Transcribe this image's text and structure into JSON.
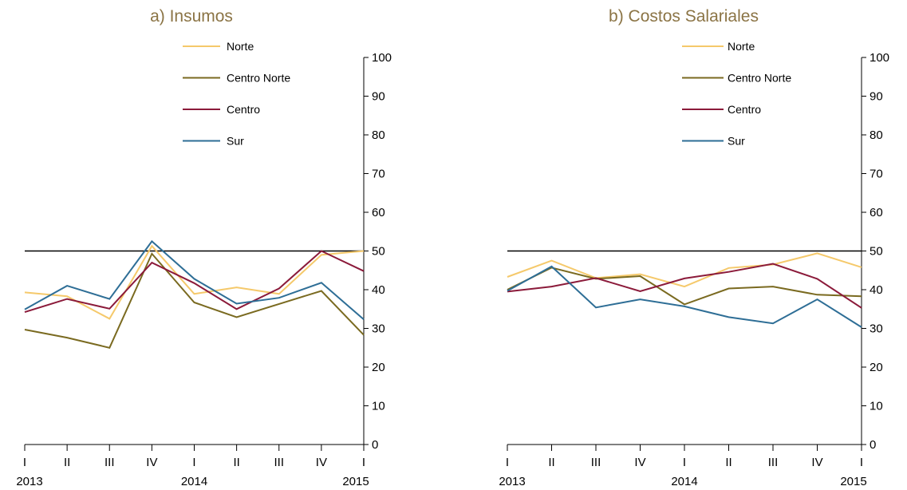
{
  "chart_data": [
    {
      "type": "line",
      "title": "a) Insumos",
      "x_labels": [
        "I",
        "II",
        "III",
        "IV",
        "I",
        "II",
        "III",
        "IV",
        "I"
      ],
      "year_labels": [
        "2013",
        "2014",
        "2015"
      ],
      "ylim": [
        0,
        100
      ],
      "yticks": [
        0,
        10,
        20,
        30,
        40,
        50,
        60,
        70,
        80,
        90,
        100
      ],
      "y_axis_side": "right",
      "reference_line": 50,
      "legend_placement": "top-right",
      "series": [
        {
          "name": "Norte",
          "color": "#F5C96B",
          "values": [
            39.3,
            38.3,
            32.5,
            51.3,
            38.9,
            40.6,
            38.9,
            49.0,
            50.0
          ]
        },
        {
          "name": "Centro Norte",
          "color": "#7A6A20",
          "values": [
            29.7,
            27.6,
            25.0,
            49.3,
            36.7,
            32.9,
            36.3,
            39.7,
            28.3
          ]
        },
        {
          "name": "Centro",
          "color": "#8B1A3A",
          "values": [
            34.2,
            37.6,
            35.1,
            47.0,
            41.7,
            35.0,
            40.3,
            50.0,
            44.8
          ]
        },
        {
          "name": "Sur",
          "color": "#2E6E96",
          "values": [
            34.9,
            41.0,
            37.6,
            52.5,
            42.8,
            36.4,
            37.9,
            41.8,
            32.3
          ]
        }
      ]
    },
    {
      "type": "line",
      "title": "b) Costos Salariales",
      "x_labels": [
        "I",
        "II",
        "III",
        "IV",
        "I",
        "II",
        "III",
        "IV",
        "I"
      ],
      "year_labels": [
        "2013",
        "2014",
        "2015"
      ],
      "ylim": [
        0,
        100
      ],
      "yticks": [
        0,
        10,
        20,
        30,
        40,
        50,
        60,
        70,
        80,
        90,
        100
      ],
      "y_axis_side": "right",
      "reference_line": 50,
      "legend_placement": "top-right",
      "series": [
        {
          "name": "Norte",
          "color": "#F5C96B",
          "values": [
            43.3,
            47.5,
            43.0,
            44.0,
            40.8,
            45.6,
            46.5,
            49.4,
            45.8
          ]
        },
        {
          "name": "Centro Norte",
          "color": "#7A6A20",
          "values": [
            40.0,
            45.7,
            42.8,
            43.5,
            36.2,
            40.3,
            40.8,
            38.7,
            38.3
          ]
        },
        {
          "name": "Centro",
          "color": "#8B1A3A",
          "values": [
            39.5,
            40.8,
            43.0,
            39.6,
            42.9,
            44.6,
            46.7,
            42.8,
            35.3
          ]
        },
        {
          "name": "Sur",
          "color": "#2E6E96",
          "values": [
            39.7,
            46.0,
            35.4,
            37.5,
            35.7,
            32.9,
            31.3,
            37.5,
            30.3
          ]
        }
      ]
    }
  ]
}
